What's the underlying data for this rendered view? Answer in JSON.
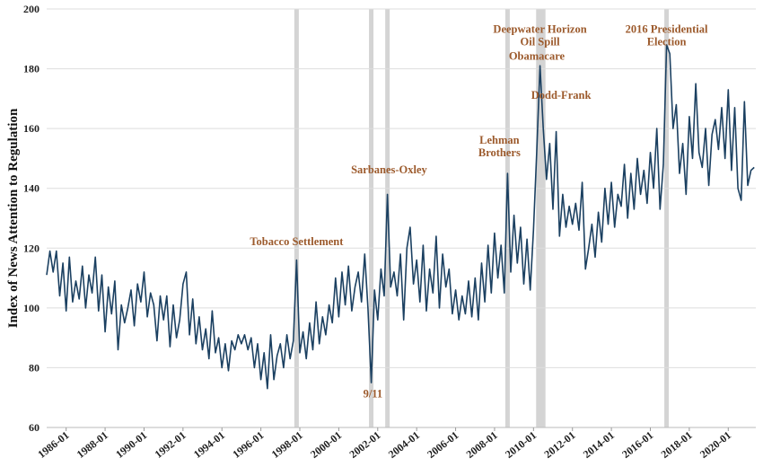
{
  "chart_data": {
    "type": "line",
    "title": "",
    "xlabel": "",
    "ylabel": "Index of News Attention to Regulation",
    "ylim": [
      60,
      200
    ],
    "xlim": [
      "1985-01",
      "2021-06"
    ],
    "grid": "horizontal",
    "y_ticks": [
      60,
      80,
      100,
      120,
      140,
      160,
      180,
      200
    ],
    "x_tick_labels": [
      "1986-01",
      "1988-01",
      "1990-01",
      "1992-01",
      "1994-01",
      "1996-01",
      "1998-01",
      "2000-01",
      "2002-01",
      "2004-01",
      "2006-01",
      "2008-01",
      "2010-01",
      "2012-01",
      "2014-01",
      "2016-01",
      "2018-01",
      "2020-01"
    ],
    "colors": {
      "line": "#1b4061",
      "annotation": "#9c5a2c",
      "event_band": "#d4d4d4",
      "grid": "#dddddd"
    },
    "events": [
      {
        "start": "1997-11",
        "end": "1997-11",
        "label": ""
      },
      {
        "start": "2001-09",
        "end": "2001-09",
        "label": ""
      },
      {
        "start": "2002-07",
        "end": "2002-07",
        "label": ""
      },
      {
        "start": "2008-09",
        "end": "2008-09",
        "label": ""
      },
      {
        "start": "2010-04",
        "end": "2010-05",
        "label": ""
      },
      {
        "start": "2010-07",
        "end": "2010-07",
        "label": ""
      },
      {
        "start": "2016-11",
        "end": "2016-11",
        "label": ""
      }
    ],
    "annotations": [
      {
        "lines": [
          "Tobacco Settlement"
        ],
        "x": "1997-11",
        "y": 121
      },
      {
        "lines": [
          "9/11"
        ],
        "x": "2001-10",
        "y": 70
      },
      {
        "lines": [
          "Sarbanes-Oxley"
        ],
        "x": "2002-08",
        "y": 145
      },
      {
        "lines": [
          "Lehman",
          "Brothers"
        ],
        "x": "2008-04",
        "y": 155
      },
      {
        "lines": [
          "Obamacare"
        ],
        "x": "2010-03",
        "y": 183
      },
      {
        "lines": [
          "Deepwater Horizon",
          "Oil Spill"
        ],
        "x": "2010-05",
        "y": 192
      },
      {
        "lines": [
          "Dodd-Frank"
        ],
        "x": "2011-06",
        "y": 170
      },
      {
        "lines": [
          "2016 Presidential",
          "Election"
        ],
        "x": "2016-11",
        "y": 192
      }
    ],
    "series": [
      {
        "points": [
          [
            "1985-01",
            111
          ],
          [
            "1985-03",
            119
          ],
          [
            "1985-05",
            112
          ],
          [
            "1985-07",
            119
          ],
          [
            "1985-09",
            104
          ],
          [
            "1985-11",
            115
          ],
          [
            "1986-01",
            99
          ],
          [
            "1986-03",
            117
          ],
          [
            "1986-05",
            102
          ],
          [
            "1986-07",
            109
          ],
          [
            "1986-09",
            103
          ],
          [
            "1986-11",
            114
          ],
          [
            "1987-01",
            100
          ],
          [
            "1987-03",
            111
          ],
          [
            "1987-05",
            105
          ],
          [
            "1987-07",
            117
          ],
          [
            "1987-09",
            99
          ],
          [
            "1987-11",
            111
          ],
          [
            "1988-01",
            92
          ],
          [
            "1988-03",
            107
          ],
          [
            "1988-05",
            98
          ],
          [
            "1988-07",
            109
          ],
          [
            "1988-09",
            86
          ],
          [
            "1988-11",
            101
          ],
          [
            "1989-01",
            95
          ],
          [
            "1989-03",
            100
          ],
          [
            "1989-05",
            106
          ],
          [
            "1989-07",
            94
          ],
          [
            "1989-09",
            108
          ],
          [
            "1989-11",
            102
          ],
          [
            "1990-01",
            112
          ],
          [
            "1990-03",
            97
          ],
          [
            "1990-05",
            105
          ],
          [
            "1990-07",
            101
          ],
          [
            "1990-09",
            89
          ],
          [
            "1990-11",
            104
          ],
          [
            "1991-01",
            96
          ],
          [
            "1991-03",
            104
          ],
          [
            "1991-05",
            87
          ],
          [
            "1991-07",
            101
          ],
          [
            "1991-09",
            90
          ],
          [
            "1991-11",
            96
          ],
          [
            "1992-01",
            108
          ],
          [
            "1992-03",
            112
          ],
          [
            "1992-05",
            91
          ],
          [
            "1992-07",
            103
          ],
          [
            "1992-09",
            88
          ],
          [
            "1992-11",
            97
          ],
          [
            "1993-01",
            86
          ],
          [
            "1993-03",
            93
          ],
          [
            "1993-05",
            83
          ],
          [
            "1993-07",
            99
          ],
          [
            "1993-09",
            85
          ],
          [
            "1993-11",
            90
          ],
          [
            "1994-01",
            80
          ],
          [
            "1994-03",
            88
          ],
          [
            "1994-05",
            79
          ],
          [
            "1994-07",
            89
          ],
          [
            "1994-09",
            86
          ],
          [
            "1994-11",
            91
          ],
          [
            "1995-01",
            88
          ],
          [
            "1995-03",
            91
          ],
          [
            "1995-05",
            86
          ],
          [
            "1995-07",
            90
          ],
          [
            "1995-09",
            80
          ],
          [
            "1995-11",
            88
          ],
          [
            "1996-01",
            76
          ],
          [
            "1996-03",
            85
          ],
          [
            "1996-05",
            73
          ],
          [
            "1996-07",
            91
          ],
          [
            "1996-09",
            76
          ],
          [
            "1996-11",
            84
          ],
          [
            "1997-01",
            88
          ],
          [
            "1997-03",
            80
          ],
          [
            "1997-05",
            91
          ],
          [
            "1997-07",
            83
          ],
          [
            "1997-09",
            89
          ],
          [
            "1997-11",
            116
          ],
          [
            "1998-01",
            85
          ],
          [
            "1998-03",
            92
          ],
          [
            "1998-05",
            83
          ],
          [
            "1998-07",
            95
          ],
          [
            "1998-09",
            86
          ],
          [
            "1998-11",
            102
          ],
          [
            "1999-01",
            88
          ],
          [
            "1999-03",
            97
          ],
          [
            "1999-05",
            91
          ],
          [
            "1999-07",
            101
          ],
          [
            "1999-09",
            95
          ],
          [
            "1999-11",
            110
          ],
          [
            "2000-01",
            97
          ],
          [
            "2000-03",
            112
          ],
          [
            "2000-05",
            101
          ],
          [
            "2000-07",
            114
          ],
          [
            "2000-09",
            99
          ],
          [
            "2000-11",
            107
          ],
          [
            "2001-01",
            112
          ],
          [
            "2001-03",
            102
          ],
          [
            "2001-05",
            118
          ],
          [
            "2001-07",
            100
          ],
          [
            "2001-09",
            75
          ],
          [
            "2001-11",
            106
          ],
          [
            "2002-01",
            96
          ],
          [
            "2002-03",
            113
          ],
          [
            "2002-05",
            104
          ],
          [
            "2002-07",
            138
          ],
          [
            "2002-09",
            107
          ],
          [
            "2002-11",
            112
          ],
          [
            "2003-01",
            104
          ],
          [
            "2003-03",
            118
          ],
          [
            "2003-05",
            96
          ],
          [
            "2003-07",
            120
          ],
          [
            "2003-09",
            127
          ],
          [
            "2003-11",
            108
          ],
          [
            "2004-01",
            116
          ],
          [
            "2004-03",
            102
          ],
          [
            "2004-05",
            121
          ],
          [
            "2004-07",
            99
          ],
          [
            "2004-09",
            113
          ],
          [
            "2004-11",
            105
          ],
          [
            "2005-01",
            124
          ],
          [
            "2005-03",
            100
          ],
          [
            "2005-05",
            118
          ],
          [
            "2005-07",
            107
          ],
          [
            "2005-09",
            113
          ],
          [
            "2005-11",
            98
          ],
          [
            "2006-01",
            106
          ],
          [
            "2006-03",
            96
          ],
          [
            "2006-05",
            104
          ],
          [
            "2006-07",
            98
          ],
          [
            "2006-09",
            109
          ],
          [
            "2006-11",
            97
          ],
          [
            "2007-01",
            110
          ],
          [
            "2007-03",
            96
          ],
          [
            "2007-05",
            115
          ],
          [
            "2007-07",
            102
          ],
          [
            "2007-09",
            121
          ],
          [
            "2007-11",
            105
          ],
          [
            "2008-01",
            125
          ],
          [
            "2008-03",
            110
          ],
          [
            "2008-05",
            121
          ],
          [
            "2008-07",
            105
          ],
          [
            "2008-09",
            145
          ],
          [
            "2008-11",
            112
          ],
          [
            "2009-01",
            131
          ],
          [
            "2009-03",
            115
          ],
          [
            "2009-05",
            127
          ],
          [
            "2009-07",
            108
          ],
          [
            "2009-09",
            123
          ],
          [
            "2009-11",
            106
          ],
          [
            "2010-01",
            126
          ],
          [
            "2010-03",
            152
          ],
          [
            "2010-05",
            181
          ],
          [
            "2010-07",
            160
          ],
          [
            "2010-09",
            143
          ],
          [
            "2010-11",
            155
          ],
          [
            "2011-01",
            133
          ],
          [
            "2011-03",
            159
          ],
          [
            "2011-05",
            124
          ],
          [
            "2011-07",
            138
          ],
          [
            "2011-09",
            127
          ],
          [
            "2011-11",
            134
          ],
          [
            "2012-01",
            128
          ],
          [
            "2012-03",
            135
          ],
          [
            "2012-05",
            126
          ],
          [
            "2012-07",
            142
          ],
          [
            "2012-09",
            113
          ],
          [
            "2012-11",
            120
          ],
          [
            "2013-01",
            128
          ],
          [
            "2013-03",
            117
          ],
          [
            "2013-05",
            132
          ],
          [
            "2013-07",
            122
          ],
          [
            "2013-09",
            140
          ],
          [
            "2013-11",
            128
          ],
          [
            "2014-01",
            142
          ],
          [
            "2014-03",
            127
          ],
          [
            "2014-05",
            138
          ],
          [
            "2014-07",
            134
          ],
          [
            "2014-09",
            148
          ],
          [
            "2014-11",
            130
          ],
          [
            "2015-01",
            145
          ],
          [
            "2015-03",
            133
          ],
          [
            "2015-05",
            150
          ],
          [
            "2015-07",
            138
          ],
          [
            "2015-09",
            146
          ],
          [
            "2015-11",
            135
          ],
          [
            "2016-01",
            152
          ],
          [
            "2016-03",
            140
          ],
          [
            "2016-05",
            160
          ],
          [
            "2016-07",
            133
          ],
          [
            "2016-09",
            148
          ],
          [
            "2016-11",
            188
          ],
          [
            "2017-01",
            185
          ],
          [
            "2017-03",
            160
          ],
          [
            "2017-05",
            168
          ],
          [
            "2017-07",
            145
          ],
          [
            "2017-09",
            155
          ],
          [
            "2017-11",
            138
          ],
          [
            "2018-01",
            164
          ],
          [
            "2018-03",
            150
          ],
          [
            "2018-05",
            175
          ],
          [
            "2018-07",
            152
          ],
          [
            "2018-09",
            147
          ],
          [
            "2018-11",
            160
          ],
          [
            "2019-01",
            141
          ],
          [
            "2019-03",
            158
          ],
          [
            "2019-05",
            163
          ],
          [
            "2019-07",
            153
          ],
          [
            "2019-09",
            167
          ],
          [
            "2019-11",
            150
          ],
          [
            "2020-01",
            173
          ],
          [
            "2020-03",
            146
          ],
          [
            "2020-05",
            167
          ],
          [
            "2020-07",
            140
          ],
          [
            "2020-09",
            136
          ],
          [
            "2020-11",
            169
          ],
          [
            "2021-01",
            141
          ],
          [
            "2021-03",
            146
          ],
          [
            "2021-05",
            147
          ]
        ]
      }
    ]
  }
}
